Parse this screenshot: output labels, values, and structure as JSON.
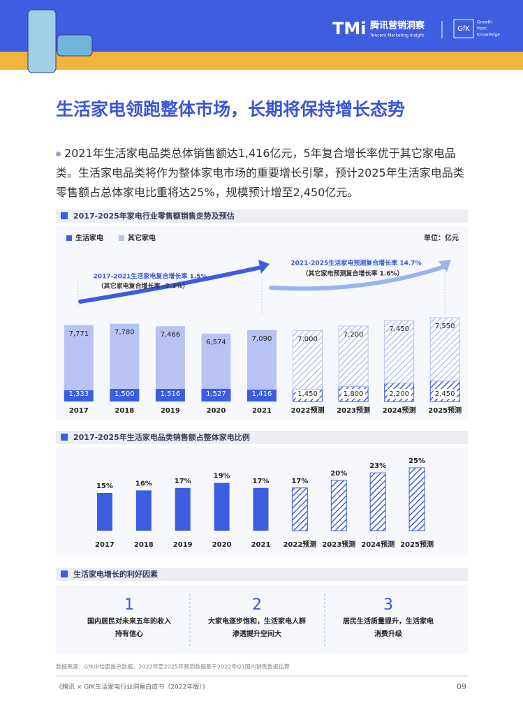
{
  "header": {
    "brand_logo": "TMi",
    "brand": "腾讯营销洞察",
    "brand_en": "Tencent Marketing Insight",
    "partner": "GfK",
    "partner_tagline": [
      "Growth",
      "from",
      "Knowledge"
    ]
  },
  "title": "生活家电领跑整体市场，长期将保持增长态势",
  "summary": "2021年生活家电品类总体销售额达1,416亿元，5年复合增长率优于其它家电品类。生活家电品类将作为整体家电市场的重要增长引擎，预计2025年生活家电品类零售额占总体家电比重将达25%，规模预计增至2,450亿元。",
  "chart_data": [
    {
      "type": "stacked_bar",
      "title": "2017-2025年家电行业零售额销售走势及预估",
      "unit": "单位：亿元",
      "legend": "top-left",
      "forecast_start": 5,
      "categories": [
        "2017",
        "2018",
        "2019",
        "2020",
        "2021",
        "2022预测",
        "2023预测",
        "2024预测",
        "2025预测"
      ],
      "series": [
        {
          "name": "生活家电",
          "color": "#3d5ce0",
          "values": [
            1333,
            1500,
            1516,
            1527,
            1416,
            1450,
            1800,
            2200,
            2450
          ],
          "value_labels": [
            "1,333",
            "1,500",
            "1,516",
            "1,527",
            "1,416",
            "1,450",
            "1,800",
            "2,200",
            "2,450"
          ]
        },
        {
          "name": "其它家电",
          "color": "#b9c3f3",
          "values": [
            7771,
            7780,
            7466,
            6574,
            7090,
            7000,
            7200,
            7450,
            7550
          ],
          "value_labels": [
            "7,771",
            "7,780",
            "7,466",
            "6,574",
            "7,090",
            "7,000",
            "7,200",
            "7,450",
            "7,550"
          ]
        }
      ],
      "annotations": [
        "2017-2021生活家电复合增长率 1.5%",
        "（其它家电复合增长率 -2.3%）",
        "2021-2025生活家电预测复合增长率 14.7%",
        "（其它家电预测复合增长率 1.6%）"
      ]
    },
    {
      "type": "bar",
      "title": "2017-2025年生活家电品类销售额占整体家电比例",
      "color": "#3d5ce0",
      "forecast_start": 5,
      "categories": [
        "2017",
        "2018",
        "2019",
        "2020",
        "2021",
        "2022预测",
        "2023预测",
        "2024预测",
        "2025预测"
      ],
      "values": [
        15,
        16,
        17,
        19,
        17,
        17,
        20,
        23,
        25
      ],
      "value_labels": [
        "15%",
        "16%",
        "17%",
        "19%",
        "17%",
        "17%",
        "20%",
        "23%",
        "25%"
      ]
    }
  ],
  "factors": {
    "title": "生活家电增长的利好因素",
    "items": [
      {
        "number": "1",
        "lines": [
          "国内居民对未来五年的收入",
          "持有信心"
        ]
      },
      {
        "number": "2",
        "lines": [
          "大家电逐步饱和，生活家电人群",
          "渗透提升空间大"
        ]
      },
      {
        "number": "3",
        "lines": [
          "居民生活质量提升，生活家电",
          "消费升级"
        ]
      }
    ]
  },
  "footer": {
    "source": "数据来源：GfK中怡康推总数据，2022年至2025年预测数据基于2022年Q1国内销售数据估算",
    "publication": "《腾讯 × GfK生活家电行业洞察白皮书（2022年版）》",
    "page": "09"
  }
}
